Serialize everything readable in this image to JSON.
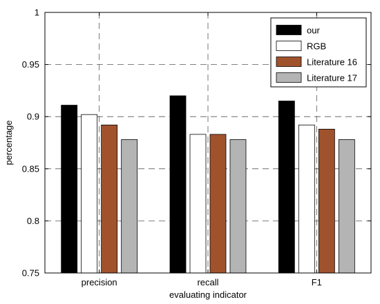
{
  "chart_data": {
    "type": "bar",
    "categories": [
      "precision",
      "recall",
      "F1"
    ],
    "series": [
      {
        "name": "our",
        "color": "#000000",
        "values": [
          0.911,
          0.92,
          0.915
        ]
      },
      {
        "name": "RGB",
        "color": "#ffffff",
        "values": [
          0.902,
          0.883,
          0.892
        ]
      },
      {
        "name": "Literature 16",
        "color": "#a0522d",
        "values": [
          0.892,
          0.883,
          0.888
        ]
      },
      {
        "name": "Literature 17",
        "color": "#b4b4b4",
        "values": [
          0.878,
          0.878,
          0.878
        ]
      }
    ],
    "xlabel": "evaluating indicator",
    "ylabel": "percentage",
    "ylim": [
      0.75,
      1.0
    ],
    "yticks": [
      0.75,
      0.8,
      0.85,
      0.9,
      0.95,
      1.0
    ],
    "ytick_labels": [
      "0.75",
      "0.8",
      "0.85",
      "0.9",
      "0.95",
      "1"
    ],
    "grid": true,
    "legend": "top-right"
  }
}
